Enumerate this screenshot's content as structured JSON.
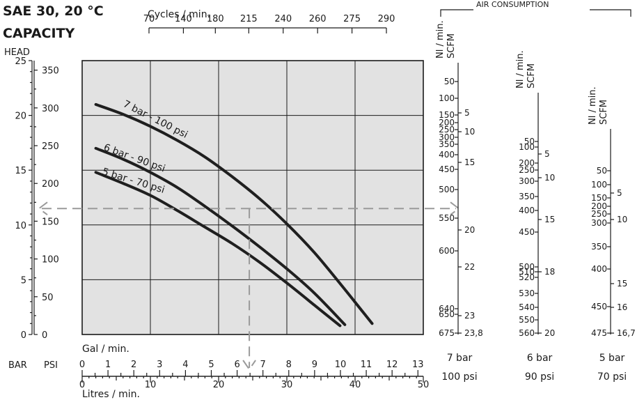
{
  "header": {
    "title_line1": "SAE 30, 20 °C",
    "title_line2": "CAPACITY",
    "head_label": "HEAD",
    "bar_label": "BAR",
    "psi_label": "PSI",
    "air_consumption_label": "AIR CONSUMPTION"
  },
  "chart_data": {
    "type": "line",
    "title": "CAPACITY",
    "subtitle": "SAE 30, 20 °C",
    "ylabel": "HEAD",
    "grid": true,
    "axes": {
      "x_bottom": {
        "label": "Litres / min.",
        "range": [
          0,
          50
        ],
        "ticks": [
          0,
          10,
          20,
          30,
          40,
          50
        ]
      },
      "x_gal": {
        "label": "Gal / min.",
        "range": [
          0,
          13.2
        ],
        "ticks": [
          0,
          1,
          2,
          3,
          4,
          5,
          6,
          7,
          8,
          9,
          10,
          11,
          12,
          13
        ]
      },
      "x_cycles": {
        "label": "Cycles / min.",
        "ticks": [
          70,
          140,
          180,
          215,
          240,
          260,
          275,
          290
        ],
        "tick_at_lpm": [
          0,
          7,
          13.5,
          20.3,
          27.3,
          34.3,
          41.3,
          48.3
        ]
      },
      "y_bar": {
        "label": "BAR",
        "range": [
          0,
          25
        ],
        "ticks": [
          0,
          5,
          10,
          15,
          20,
          25
        ]
      },
      "y_psi": {
        "label": "PSI",
        "range": [
          0,
          362.6
        ],
        "ticks": [
          0,
          50,
          100,
          150,
          200,
          250,
          300,
          350
        ]
      }
    },
    "series": [
      {
        "name": "7 bar - 100 psi",
        "x": [
          2,
          6,
          10,
          14,
          18,
          22,
          26,
          30,
          34,
          38,
          42.5
        ],
        "y": [
          21,
          20.1,
          19,
          17.7,
          16.2,
          14.4,
          12.4,
          10.1,
          7.5,
          4.5,
          1
        ]
      },
      {
        "name": "6 bar - 90 psi",
        "x": [
          2,
          6,
          10,
          14,
          18,
          22,
          26,
          30,
          34,
          38.5
        ],
        "y": [
          17,
          16,
          14.8,
          13.4,
          11.7,
          9.9,
          8,
          6,
          3.8,
          0.9
        ]
      },
      {
        "name": "5 bar - 70 psi",
        "x": [
          2,
          6,
          10,
          14,
          18,
          22,
          26,
          30,
          34,
          37.8
        ],
        "y": [
          14.8,
          13.8,
          12.7,
          11.3,
          9.8,
          8.3,
          6.6,
          4.7,
          2.7,
          0.8
        ]
      }
    ],
    "reference": {
      "x_lpm": 24.5,
      "y_bar": 11.5
    },
    "air_consumption": [
      {
        "label_bar": "7 bar",
        "label_psi": "100 psi",
        "nl_ticks": [
          "50",
          "100",
          "150",
          "200",
          "250",
          "300",
          "350",
          "400",
          "450",
          "500",
          "550",
          "600",
          "640",
          "650",
          "675"
        ],
        "scfm_ticks": [
          "5",
          "10",
          "15",
          "20",
          "22",
          "23",
          "23,8"
        ]
      },
      {
        "label_bar": "6 bar",
        "label_psi": "90 psi",
        "nl_ticks": [
          "50",
          "100",
          "200",
          "250",
          "300",
          "350",
          "400",
          "450",
          "500",
          "510",
          "520",
          "530",
          "540",
          "550",
          "560"
        ],
        "scfm_ticks": [
          "5",
          "10",
          "15",
          "18",
          "20"
        ]
      },
      {
        "label_bar": "5 bar",
        "label_psi": "70 psi",
        "nl_ticks": [
          "50",
          "100",
          "150",
          "200",
          "250",
          "300",
          "350",
          "400",
          "450",
          "475"
        ],
        "scfm_ticks": [
          "5",
          "10",
          "15",
          "16",
          "16,7"
        ]
      }
    ],
    "unit_labels": {
      "nl": "Nl / min.",
      "scfm": "SCFM"
    }
  }
}
